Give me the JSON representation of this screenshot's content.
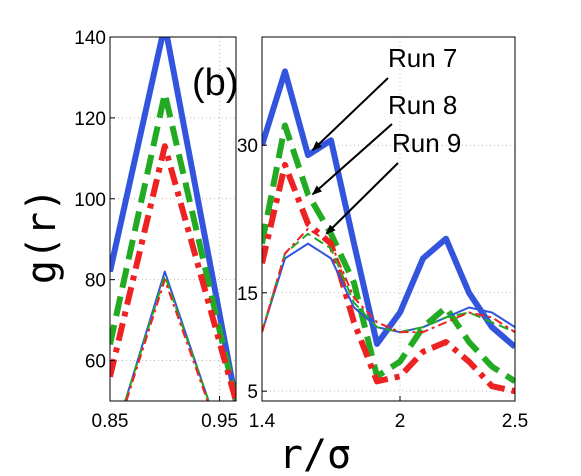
{
  "chart_data": [
    {
      "type": "line",
      "panel": "left",
      "ylabel": "g(r)",
      "xlim": [
        0.85,
        0.965
      ],
      "ylim": [
        50,
        140
      ],
      "xticks": [
        0.85,
        0.95
      ],
      "yticks": [
        60,
        80,
        100,
        120,
        140
      ],
      "grid": true,
      "series": [
        {
          "color": "#3355dd",
          "style": "solid-thick",
          "x": [
            0.85,
            0.9,
            0.965
          ],
          "y": [
            82,
            143,
            50
          ]
        },
        {
          "color": "#22aa22",
          "style": "dashed-thick",
          "x": [
            0.85,
            0.9,
            0.965
          ],
          "y": [
            64,
            126,
            50
          ]
        },
        {
          "color": "#ee2222",
          "style": "dashdot-thick",
          "x": [
            0.85,
            0.9,
            0.965
          ],
          "y": [
            56,
            113,
            50
          ]
        },
        {
          "color": "#3355dd",
          "style": "solid-thin",
          "x": [
            0.864,
            0.9,
            0.94
          ],
          "y": [
            50,
            82,
            50
          ]
        },
        {
          "color": "#22aa22",
          "style": "dashed-thin",
          "x": [
            0.864,
            0.9,
            0.94
          ],
          "y": [
            50,
            81,
            50
          ]
        },
        {
          "color": "#ee2222",
          "style": "dashdot-thin",
          "x": [
            0.865,
            0.9,
            0.939
          ],
          "y": [
            50,
            80,
            50
          ]
        }
      ]
    },
    {
      "type": "line",
      "panel": "right",
      "panel_label": "(b)",
      "xlabel": "r/σ",
      "xlim": [
        1.4,
        2.5
      ],
      "ylim": [
        4,
        41
      ],
      "xticks": [
        1.4,
        2,
        2.5
      ],
      "yticks": [
        5,
        15,
        30
      ],
      "grid": true,
      "series": [
        {
          "name": "Run 7",
          "color": "#3355dd",
          "style": "solid-thick",
          "x": [
            1.4,
            1.5,
            1.6,
            1.7,
            1.8,
            1.9,
            2.0,
            2.1,
            2.2,
            2.3,
            2.4,
            2.5
          ],
          "y": [
            30.0,
            37.5,
            29.0,
            30.5,
            20.0,
            9.8,
            13.0,
            18.5,
            20.5,
            15.0,
            11.5,
            9.5
          ]
        },
        {
          "name": "Run 8",
          "color": "#22aa22",
          "style": "dashed-thick",
          "x": [
            1.4,
            1.5,
            1.6,
            1.7,
            1.8,
            1.9,
            2.0,
            2.1,
            2.2,
            2.3,
            2.4,
            2.5
          ],
          "y": [
            20.0,
            32.0,
            25.0,
            21.0,
            16.0,
            6.5,
            8.0,
            11.5,
            13.5,
            10.0,
            7.5,
            6.0
          ]
        },
        {
          "name": "Run 9",
          "color": "#ee2222",
          "style": "dashdot-thick",
          "x": [
            1.4,
            1.5,
            1.6,
            1.7,
            1.8,
            1.9,
            2.0,
            2.1,
            2.2,
            2.3,
            2.4,
            2.5
          ],
          "y": [
            18.0,
            28.0,
            22.0,
            20.0,
            12.0,
            6.0,
            6.5,
            9.0,
            10.0,
            8.0,
            5.5,
            5.0
          ]
        },
        {
          "color": "#3355dd",
          "style": "solid-thin",
          "x": [
            1.4,
            1.5,
            1.6,
            1.7,
            1.8,
            1.9,
            2.0,
            2.1,
            2.2,
            2.3,
            2.4,
            2.5
          ],
          "y": [
            11.0,
            18.5,
            20.0,
            18.5,
            13.5,
            11.5,
            11.0,
            11.5,
            12.5,
            13.5,
            13.0,
            11.5
          ]
        },
        {
          "color": "#22aa22",
          "style": "dashed-thin",
          "x": [
            1.4,
            1.5,
            1.6,
            1.7,
            1.8,
            1.9,
            2.0,
            2.1,
            2.2,
            2.3,
            2.4,
            2.5
          ],
          "y": [
            11.0,
            19.0,
            21.0,
            19.5,
            14.0,
            11.5,
            11.0,
            11.5,
            12.5,
            13.0,
            12.0,
            11.0
          ]
        },
        {
          "color": "#ee2222",
          "style": "dashdot-thin",
          "x": [
            1.4,
            1.5,
            1.6,
            1.7,
            1.8,
            1.9,
            2.0,
            2.1,
            2.2,
            2.3,
            2.4,
            2.5
          ],
          "y": [
            11.0,
            19.0,
            21.5,
            20.0,
            14.5,
            12.0,
            11.0,
            11.0,
            12.0,
            13.0,
            12.5,
            11.0
          ]
        }
      ],
      "annotations": [
        {
          "text": "Run 7",
          "points_to": [
            1.62,
            29.5
          ]
        },
        {
          "text": "Run 8",
          "points_to": [
            1.62,
            25.0
          ]
        },
        {
          "text": "Run 9",
          "points_to": [
            1.68,
            21.0
          ]
        }
      ]
    }
  ]
}
